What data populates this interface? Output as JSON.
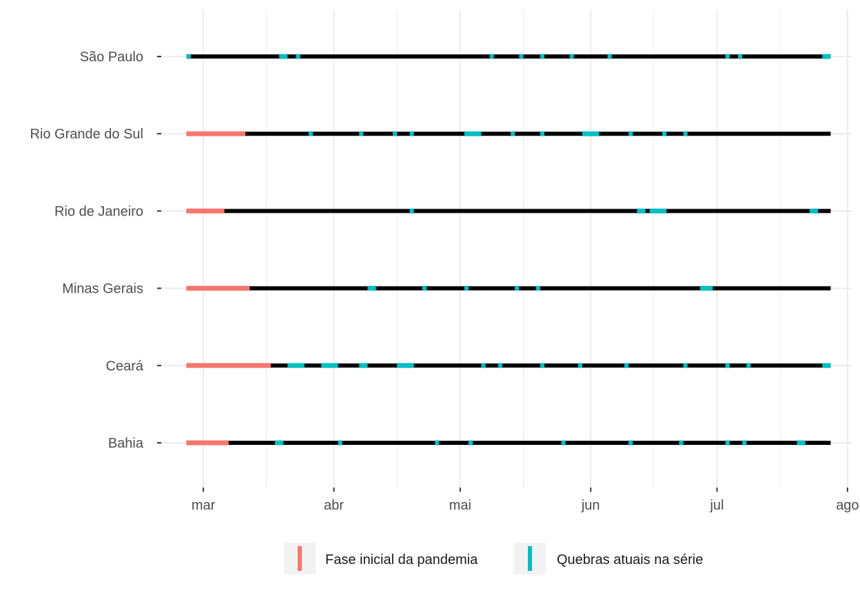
{
  "chart_data": {
    "type": "timeline",
    "title": "",
    "xlabel": "",
    "ylabel": "",
    "x_domain": [
      "2020-02-20",
      "2020-08-02"
    ],
    "x_ticks": [
      {
        "date": "2020-03-01",
        "label": "mar"
      },
      {
        "date": "2020-04-01",
        "label": "abr"
      },
      {
        "date": "2020-05-01",
        "label": "mai"
      },
      {
        "date": "2020-06-01",
        "label": "jun"
      },
      {
        "date": "2020-07-01",
        "label": "jul"
      },
      {
        "date": "2020-08-01",
        "label": "ago"
      }
    ],
    "x_minor_ticks": [
      "2020-03-16",
      "2020-04-16",
      "2020-05-16",
      "2020-06-16",
      "2020-07-16"
    ],
    "grid": true,
    "legend_position": "bottom",
    "colors": {
      "fase_inicial": "#F8766D",
      "quebras": "#00BFC4",
      "serie": "#000000",
      "grid": "#ebebeb",
      "legend_key_bg": "#f2f2f2"
    },
    "legend": [
      {
        "key": "fase_inicial",
        "label": "Fase inicial da pandemia"
      },
      {
        "key": "quebras",
        "label": "Quebras atuais na série"
      }
    ],
    "series_range": [
      "2020-02-26",
      "2020-07-28"
    ],
    "rows": [
      {
        "state": "São Paulo",
        "fase_inicial": null,
        "quebras": [
          [
            "2020-02-26",
            "2020-02-27"
          ],
          [
            "2020-03-19",
            "2020-03-21"
          ],
          [
            "2020-03-23",
            "2020-03-24"
          ],
          [
            "2020-05-08",
            "2020-05-09"
          ],
          [
            "2020-05-15",
            "2020-05-16"
          ],
          [
            "2020-05-20",
            "2020-05-21"
          ],
          [
            "2020-05-27",
            "2020-05-28"
          ],
          [
            "2020-06-05",
            "2020-06-06"
          ],
          [
            "2020-07-03",
            "2020-07-04"
          ],
          [
            "2020-07-06",
            "2020-07-07"
          ],
          [
            "2020-07-26",
            "2020-07-28"
          ]
        ]
      },
      {
        "state": "Rio Grande do Sul",
        "fase_inicial": [
          "2020-02-26",
          "2020-03-11"
        ],
        "quebras": [
          [
            "2020-03-26",
            "2020-03-27"
          ],
          [
            "2020-04-07",
            "2020-04-08"
          ],
          [
            "2020-04-15",
            "2020-04-16"
          ],
          [
            "2020-04-19",
            "2020-04-20"
          ],
          [
            "2020-05-02",
            "2020-05-06"
          ],
          [
            "2020-05-13",
            "2020-05-14"
          ],
          [
            "2020-05-20",
            "2020-05-21"
          ],
          [
            "2020-05-30",
            "2020-06-03"
          ],
          [
            "2020-06-10",
            "2020-06-11"
          ],
          [
            "2020-06-18",
            "2020-06-19"
          ],
          [
            "2020-06-23",
            "2020-06-24"
          ]
        ]
      },
      {
        "state": "Rio de Janeiro",
        "fase_inicial": [
          "2020-02-26",
          "2020-03-06"
        ],
        "quebras": [
          [
            "2020-04-19",
            "2020-04-20"
          ],
          [
            "2020-06-12",
            "2020-06-14"
          ],
          [
            "2020-06-15",
            "2020-06-19"
          ],
          [
            "2020-07-23",
            "2020-07-25"
          ]
        ]
      },
      {
        "state": "Minas Gerais",
        "fase_inicial": [
          "2020-02-26",
          "2020-03-12"
        ],
        "quebras": [
          [
            "2020-03-10",
            "2020-03-12"
          ],
          [
            "2020-04-09",
            "2020-04-11"
          ],
          [
            "2020-04-22",
            "2020-04-23"
          ],
          [
            "2020-05-02",
            "2020-05-03"
          ],
          [
            "2020-05-14",
            "2020-05-15"
          ],
          [
            "2020-05-19",
            "2020-05-20"
          ],
          [
            "2020-06-27",
            "2020-06-30"
          ]
        ]
      },
      {
        "state": "Ceará",
        "fase_inicial": [
          "2020-02-26",
          "2020-03-17"
        ],
        "quebras": [
          [
            "2020-03-21",
            "2020-03-25"
          ],
          [
            "2020-03-29",
            "2020-04-02"
          ],
          [
            "2020-04-07",
            "2020-04-09"
          ],
          [
            "2020-04-16",
            "2020-04-20"
          ],
          [
            "2020-05-06",
            "2020-05-07"
          ],
          [
            "2020-05-10",
            "2020-05-11"
          ],
          [
            "2020-05-20",
            "2020-05-21"
          ],
          [
            "2020-05-29",
            "2020-05-30"
          ],
          [
            "2020-06-09",
            "2020-06-10"
          ],
          [
            "2020-06-23",
            "2020-06-24"
          ],
          [
            "2020-07-03",
            "2020-07-04"
          ],
          [
            "2020-07-08",
            "2020-07-09"
          ],
          [
            "2020-07-26",
            "2020-07-28"
          ]
        ]
      },
      {
        "state": "Bahia",
        "fase_inicial": [
          "2020-02-26",
          "2020-03-07"
        ],
        "quebras": [
          [
            "2020-03-18",
            "2020-03-20"
          ],
          [
            "2020-04-02",
            "2020-04-03"
          ],
          [
            "2020-04-25",
            "2020-04-26"
          ],
          [
            "2020-05-03",
            "2020-05-04"
          ],
          [
            "2020-05-25",
            "2020-05-26"
          ],
          [
            "2020-06-10",
            "2020-06-11"
          ],
          [
            "2020-06-22",
            "2020-06-23"
          ],
          [
            "2020-07-03",
            "2020-07-04"
          ],
          [
            "2020-07-07",
            "2020-07-08"
          ],
          [
            "2020-07-20",
            "2020-07-22"
          ]
        ]
      }
    ]
  }
}
